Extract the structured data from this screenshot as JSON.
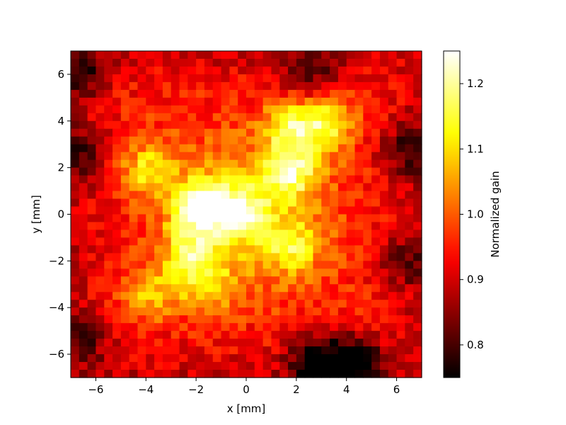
{
  "chart_data": {
    "type": "heatmap",
    "title": "",
    "xlabel": "x [mm]",
    "ylabel": "y [mm]",
    "xlim": [
      -7,
      7
    ],
    "ylim": [
      -7,
      7
    ],
    "xticks": [
      -6,
      -4,
      -2,
      0,
      2,
      4,
      6
    ],
    "yticks": [
      -6,
      -4,
      -2,
      0,
      2,
      4,
      6
    ],
    "xtick_labels": [
      "−6",
      "−4",
      "−2",
      "0",
      "2",
      "4",
      "6"
    ],
    "ytick_labels": [
      "−6",
      "−4",
      "−2",
      "0",
      "2",
      "4",
      "6"
    ],
    "colormap": "hot",
    "grid": false,
    "grid_size": [
      42,
      42
    ],
    "colorbar": {
      "label": "Normalized gain",
      "range": [
        0.75,
        1.25
      ],
      "ticks": [
        0.8,
        0.9,
        1.0,
        1.1,
        1.2
      ],
      "tick_labels": [
        "0.8",
        "0.9",
        "1.0",
        "1.1",
        "1.2"
      ]
    },
    "hotspots": [
      {
        "x": -1.8,
        "y": 0.3,
        "value": 1.23
      },
      {
        "x": -0.2,
        "y": 0.1,
        "value": 1.15
      },
      {
        "x": 1.8,
        "y": 1.8,
        "value": 1.17
      },
      {
        "x": 1.8,
        "y": 3.7,
        "value": 1.16
      },
      {
        "x": 3.3,
        "y": 3.9,
        "value": 1.14
      },
      {
        "x": -4.0,
        "y": 1.9,
        "value": 1.12
      },
      {
        "x": -2.2,
        "y": -1.6,
        "value": 1.12
      },
      {
        "x": -1.6,
        "y": -3.0,
        "value": 1.1
      },
      {
        "x": -3.8,
        "y": -3.4,
        "value": 1.09
      },
      {
        "x": 1.8,
        "y": -1.4,
        "value": 1.1
      }
    ],
    "coldspots": [
      {
        "x": 2.8,
        "y": -6.3,
        "value": 0.78
      },
      {
        "x": 4.4,
        "y": -6.2,
        "value": 0.79
      },
      {
        "x": -6.6,
        "y": 6.1,
        "value": 0.84
      },
      {
        "x": 6.5,
        "y": 2.7,
        "value": 0.84
      },
      {
        "x": -6.4,
        "y": 2.6,
        "value": 0.86
      },
      {
        "x": 2.5,
        "y": 6.2,
        "value": 0.86
      },
      {
        "x": 6.4,
        "y": -2.0,
        "value": 0.87
      },
      {
        "x": -6.4,
        "y": -5.5,
        "value": 0.87
      }
    ],
    "baseline_value": 0.97,
    "edge_value": 0.89
  }
}
